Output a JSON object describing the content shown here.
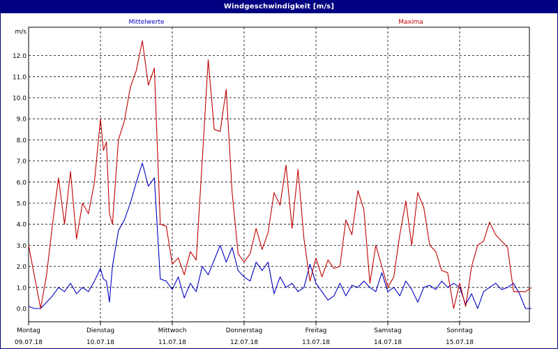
{
  "window": {
    "title": "Windgeschwindigkeit [m/s]"
  },
  "chart_data": {
    "type": "line",
    "title": "Windgeschwindigkeit [m/s]",
    "ylabel": "m/s",
    "ylim": [
      0,
      13
    ],
    "y_ticks": [
      "0.0",
      "1.0",
      "2.0",
      "3.0",
      "4.0",
      "5.0",
      "6.0",
      "7.0",
      "8.0",
      "9.0",
      "10.0",
      "11.0",
      "12.0"
    ],
    "x_unit": "hours since 09.07.18 00:00",
    "xlim": [
      0,
      168
    ],
    "x_ticks": [
      {
        "day": "Montag",
        "date": "09.07.18"
      },
      {
        "day": "Dienstag",
        "date": "10.07.18"
      },
      {
        "day": "Mittwoch",
        "date": "11.07.18"
      },
      {
        "day": "Donnerstag",
        "date": "12.07.18"
      },
      {
        "day": "Freitag",
        "date": "13.07.18"
      },
      {
        "day": "Samstag",
        "date": "14.07.18"
      },
      {
        "day": "Sonntag",
        "date": "15.07.18"
      }
    ],
    "grid": true,
    "series": [
      {
        "name": "Mittelwerte",
        "color": "#0000c0",
        "x": [
          0,
          2,
          4,
          6,
          8,
          10,
          12,
          14,
          16,
          18,
          20,
          22,
          24,
          25,
          26,
          27,
          28,
          30,
          32,
          34,
          36,
          38,
          40,
          42,
          44,
          46,
          48,
          50,
          52,
          54,
          56,
          58,
          60,
          62,
          64,
          66,
          68,
          70,
          72,
          74,
          76,
          78,
          80,
          82,
          84,
          86,
          88,
          90,
          92,
          94,
          96,
          98,
          100,
          102,
          104,
          106,
          108,
          110,
          112,
          114,
          116,
          118,
          120,
          122,
          124,
          126,
          128,
          130,
          132,
          134,
          136,
          138,
          140,
          142,
          144,
          146,
          148,
          150,
          152,
          154,
          156,
          158,
          160,
          162,
          164,
          166,
          168
        ],
        "y": [
          0.1,
          0.0,
          0.0,
          0.3,
          0.6,
          1.0,
          0.8,
          1.2,
          0.7,
          1.0,
          0.8,
          1.3,
          1.9,
          1.4,
          1.3,
          0.3,
          2.0,
          3.7,
          4.2,
          5.0,
          6.0,
          6.9,
          5.8,
          6.2,
          1.4,
          1.3,
          0.9,
          1.5,
          0.5,
          1.2,
          0.8,
          2.0,
          1.6,
          2.3,
          3.0,
          2.2,
          2.9,
          1.8,
          1.5,
          1.3,
          2.2,
          1.8,
          2.2,
          0.7,
          1.5,
          1.0,
          1.2,
          0.8,
          1.0,
          2.1,
          1.2,
          0.8,
          0.4,
          0.6,
          1.2,
          0.6,
          1.1,
          1.0,
          1.3,
          1.0,
          0.8,
          1.7,
          0.8,
          1.0,
          0.6,
          1.3,
          0.9,
          0.3,
          1.0,
          1.1,
          0.9,
          1.3,
          1.0,
          1.2,
          1.0,
          0.2,
          0.7,
          0.0,
          0.8,
          1.0,
          1.2,
          0.9,
          1.0,
          1.2,
          0.7,
          0.0,
          0.0
        ]
      },
      {
        "name": "Maxima",
        "color": "#c00000",
        "x": [
          0,
          2,
          4,
          6,
          8,
          10,
          12,
          14,
          16,
          18,
          20,
          22,
          24,
          25,
          26,
          27,
          28,
          30,
          32,
          34,
          36,
          38,
          40,
          42,
          44,
          46,
          48,
          50,
          52,
          54,
          56,
          58,
          60,
          62,
          64,
          66,
          68,
          70,
          72,
          74,
          76,
          78,
          80,
          82,
          84,
          86,
          88,
          90,
          92,
          94,
          96,
          98,
          100,
          102,
          104,
          106,
          108,
          110,
          112,
          114,
          116,
          118,
          120,
          122,
          124,
          126,
          128,
          130,
          132,
          134,
          136,
          138,
          140,
          142,
          144,
          146,
          148,
          150,
          152,
          154,
          156,
          158,
          160,
          162,
          164,
          166,
          168
        ],
        "y": [
          3.0,
          1.5,
          0.0,
          1.6,
          4.0,
          6.2,
          4.0,
          6.5,
          3.3,
          5.0,
          4.5,
          6.0,
          9.0,
          7.5,
          7.9,
          4.5,
          4.0,
          8.0,
          8.9,
          10.5,
          11.3,
          12.7,
          10.6,
          11.4,
          4.0,
          3.9,
          2.1,
          2.4,
          1.6,
          2.7,
          2.3,
          7.0,
          11.8,
          8.5,
          8.4,
          10.4,
          5.5,
          2.6,
          2.2,
          2.6,
          3.8,
          2.8,
          3.6,
          5.5,
          4.9,
          6.8,
          3.8,
          6.6,
          3.3,
          1.3,
          2.4,
          1.5,
          2.3,
          1.9,
          2.0,
          4.2,
          3.5,
          5.6,
          4.7,
          1.2,
          3.0,
          2.0,
          1.0,
          1.5,
          3.5,
          5.1,
          3.0,
          5.5,
          4.8,
          3.0,
          2.7,
          1.8,
          1.7,
          0.0,
          1.2,
          0.1,
          2.0,
          3.0,
          3.2,
          4.1,
          3.5,
          3.2,
          2.9,
          0.8,
          0.8,
          0.8,
          1.0
        ]
      }
    ]
  }
}
